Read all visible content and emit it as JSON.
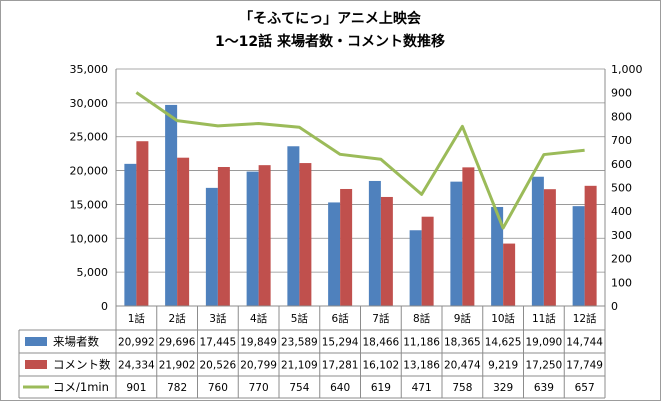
{
  "chart_data": {
    "type": "bar",
    "title_line1": "「そふてにっ」アニメ上映会",
    "title_line2": "1～12話 来場者数・コメント数推移",
    "categories": [
      "1話",
      "2話",
      "3話",
      "4話",
      "5話",
      "6話",
      "7話",
      "8話",
      "9話",
      "10話",
      "11話",
      "12話"
    ],
    "y_left": {
      "min": 0,
      "max": 35000,
      "ticks": [
        "0",
        "5,000",
        "10,000",
        "15,000",
        "20,000",
        "25,000",
        "30,000",
        "35,000"
      ]
    },
    "y_right": {
      "min": 0,
      "max": 1000,
      "ticks": [
        "0",
        "100",
        "200",
        "300",
        "400",
        "500",
        "600",
        "700",
        "800",
        "900",
        "1,000"
      ]
    },
    "series": [
      {
        "name": "来場者数",
        "type": "bar",
        "axis": "left",
        "color": "#4f81bd",
        "values": [
          20992,
          29696,
          17445,
          19849,
          23589,
          15294,
          18466,
          11186,
          18365,
          14625,
          19090,
          14744
        ],
        "labels": [
          "20,992",
          "29,696",
          "17,445",
          "19,849",
          "23,589",
          "15,294",
          "18,466",
          "11,186",
          "18,365",
          "14,625",
          "19,090",
          "14,744"
        ]
      },
      {
        "name": "コメント数",
        "type": "bar",
        "axis": "left",
        "color": "#c0504d",
        "values": [
          24334,
          21902,
          20526,
          20799,
          21109,
          17281,
          16102,
          13186,
          20474,
          9219,
          17250,
          17749
        ],
        "labels": [
          "24,334",
          "21,902",
          "20,526",
          "20,799",
          "21,109",
          "17,281",
          "16,102",
          "13,186",
          "20,474",
          "9,219",
          "17,250",
          "17,749"
        ]
      },
      {
        "name": "コメ/1min",
        "type": "line",
        "axis": "right",
        "color": "#9bbb59",
        "values": [
          901,
          782,
          760,
          770,
          754,
          640,
          619,
          471,
          758,
          329,
          639,
          657
        ],
        "labels": [
          "901",
          "782",
          "760",
          "770",
          "754",
          "640",
          "619",
          "471",
          "758",
          "329",
          "639",
          "657"
        ]
      }
    ]
  }
}
